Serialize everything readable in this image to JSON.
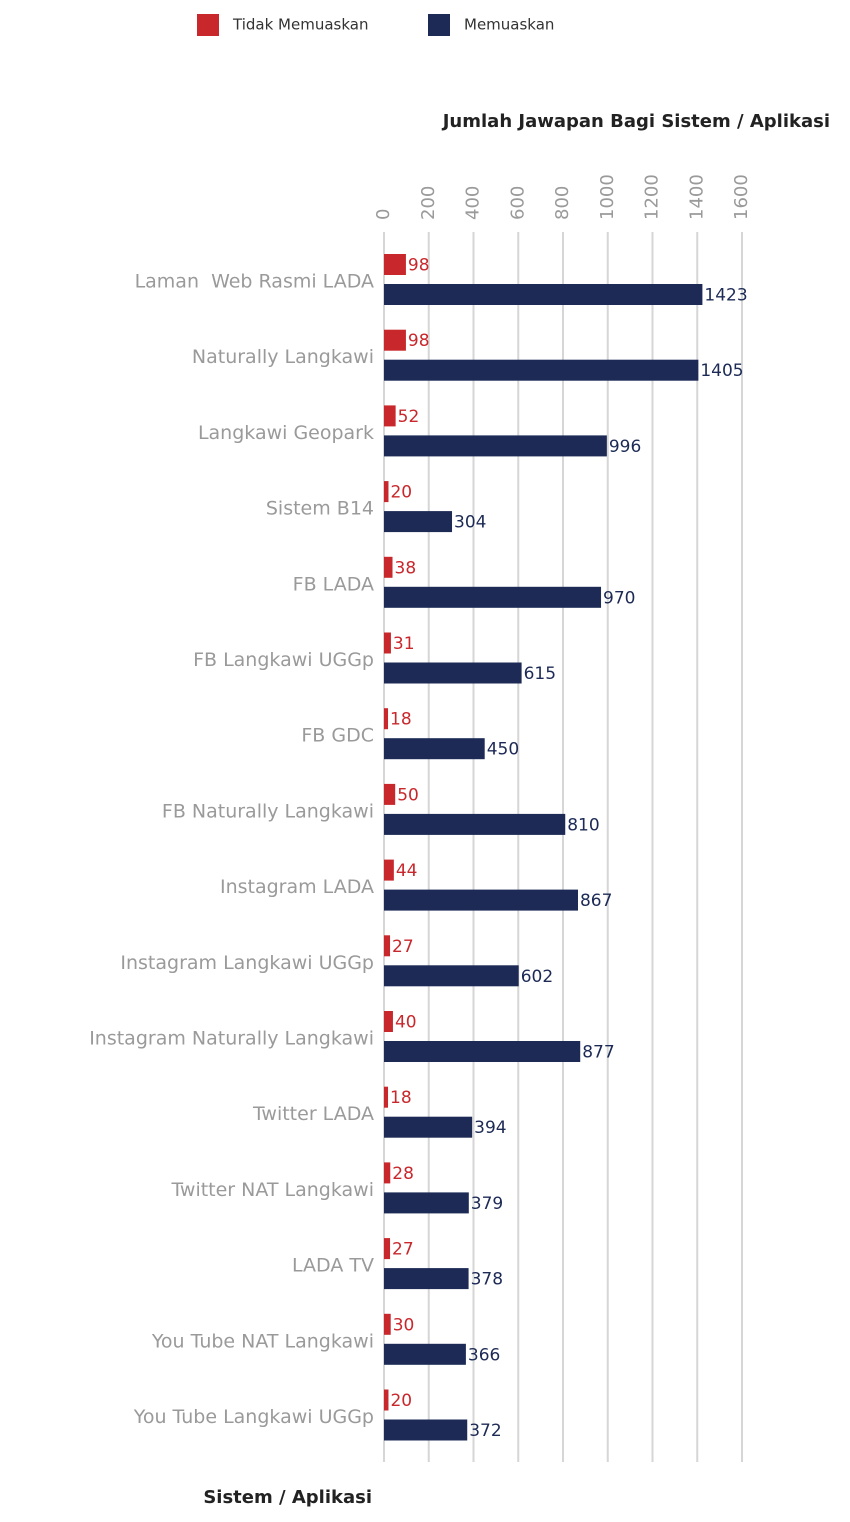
{
  "chart_data": {
    "type": "bar",
    "orientation": "horizontal",
    "title": "Jumlah Jawapan Bagi Sistem / Aplikasi",
    "y_axis_label": "Sistem / Aplikasi",
    "categories": [
      "Laman  Web Rasmi LADA",
      "Naturally Langkawi",
      "Langkawi Geopark",
      "Sistem B14",
      "FB LADA",
      "FB Langkawi UGGp",
      "FB GDC",
      "FB Naturally Langkawi",
      "Instagram LADA",
      "Instagram Langkawi UGGp",
      "Instagram Naturally Langkawi",
      "Twitter LADA",
      "Twitter NAT Langkawi",
      "LADA TV",
      "You Tube NAT Langkawi",
      "You Tube Langkawi UGGp"
    ],
    "series": [
      {
        "name": "Tidak Memuaskan",
        "color": "#c8282c",
        "values": [
          98,
          98,
          52,
          20,
          38,
          31,
          18,
          50,
          44,
          27,
          40,
          18,
          28,
          27,
          30,
          20
        ]
      },
      {
        "name": "Memuaskan",
        "color": "#1c2a55",
        "values": [
          1423,
          1405,
          996,
          304,
          970,
          615,
          450,
          810,
          867,
          602,
          877,
          394,
          379,
          378,
          366,
          372
        ]
      }
    ],
    "xlim": [
      0,
      1600
    ],
    "xticks": [
      0,
      200,
      400,
      600,
      800,
      1000,
      1200,
      1400,
      1600
    ],
    "grid": true,
    "legend": "top"
  }
}
